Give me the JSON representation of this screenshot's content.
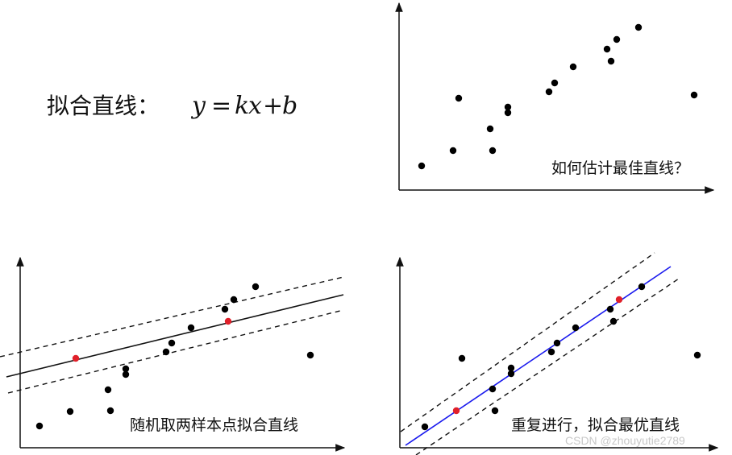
{
  "title_text": "拟合直线：",
  "formula": {
    "y": "y",
    "eq": "=",
    "k": "k",
    "x": "x",
    "plus": "+",
    "b": "b"
  },
  "panels": {
    "top_right": {
      "caption": "如何估计最佳直线？",
      "points": [
        [
          523,
          206
        ],
        [
          562,
          187
        ],
        [
          569,
          122
        ],
        [
          608,
          160
        ],
        [
          611,
          187
        ],
        [
          630,
          133
        ],
        [
          630,
          140
        ],
        [
          681,
          114
        ],
        [
          688,
          103
        ],
        [
          711,
          83
        ],
        [
          753,
          61
        ],
        [
          758,
          76
        ],
        [
          765,
          49
        ],
        [
          792,
          34
        ],
        [
          861,
          118
        ]
      ]
    },
    "bottom_left": {
      "caption": "随机取两样本点拟合直线",
      "points": [
        [
          49,
          529
        ],
        [
          87,
          511
        ],
        [
          134,
          484
        ],
        [
          137,
          510
        ],
        [
          156,
          458
        ],
        [
          156,
          465
        ],
        [
          206,
          437
        ],
        [
          213,
          426
        ],
        [
          237,
          407
        ],
        [
          279,
          384
        ],
        [
          290,
          372
        ],
        [
          317,
          356
        ],
        [
          385,
          441
        ]
      ],
      "highlight_points": [
        [
          94,
          445
        ],
        [
          283,
          399
        ]
      ],
      "fit_color": "#111111",
      "highlight_color": "#e0202a"
    },
    "bottom_right": {
      "caption": "重复进行，拟合最优直线",
      "points": [
        [
          527,
          530
        ],
        [
          573,
          445
        ],
        [
          611,
          483
        ],
        [
          614,
          510
        ],
        [
          634,
          457
        ],
        [
          634,
          464
        ],
        [
          684,
          437
        ],
        [
          691,
          426
        ],
        [
          714,
          407
        ],
        [
          757,
          384
        ],
        [
          761,
          399
        ],
        [
          796,
          356
        ],
        [
          865,
          441
        ]
      ],
      "highlight_points": [
        [
          566,
          510
        ],
        [
          768,
          372
        ]
      ],
      "fit_color": "#1a1aee",
      "highlight_color": "#e0202a"
    }
  },
  "watermark": "CSDN @zhouyutie2789"
}
